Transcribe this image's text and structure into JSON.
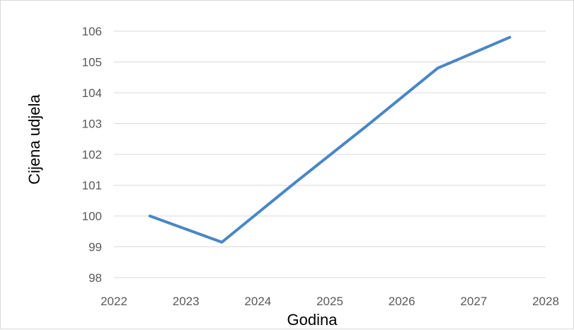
{
  "chart_data": {
    "type": "line",
    "title": "",
    "xlabel": "Godina",
    "ylabel": "Cijena udjela",
    "x_ticks": [
      "2022",
      "2023",
      "2024",
      "2025",
      "2026",
      "2027",
      "2028"
    ],
    "y_ticks": [
      "98",
      "99",
      "100",
      "101",
      "102",
      "103",
      "104",
      "105",
      "106"
    ],
    "xlim": [
      2022,
      2028
    ],
    "ylim": [
      98,
      106
    ],
    "grid": "horizontal",
    "legend": "none",
    "series": [
      {
        "color": "#4a86c5",
        "points": [
          {
            "x": 2022.5,
            "y": 100.0
          },
          {
            "x": 2023.5,
            "y": 99.15
          },
          {
            "x": 2024.5,
            "y": 101.05
          },
          {
            "x": 2025.5,
            "y": 102.9
          },
          {
            "x": 2026.5,
            "y": 104.8
          },
          {
            "x": 2027.5,
            "y": 105.8
          }
        ]
      }
    ]
  }
}
